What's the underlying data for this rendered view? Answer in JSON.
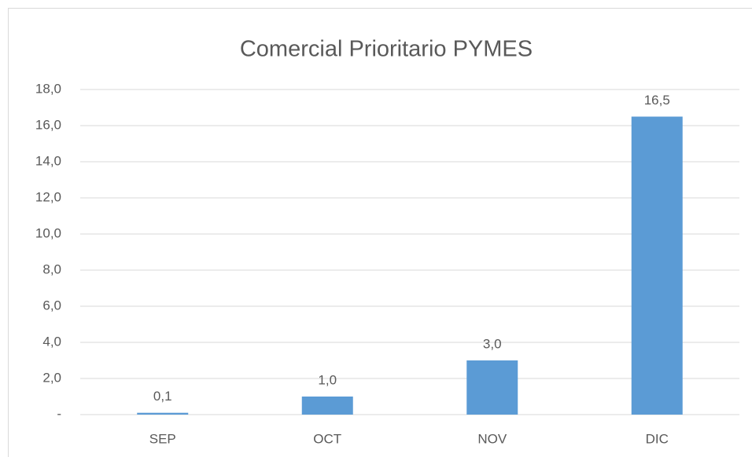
{
  "chart_data": {
    "type": "bar",
    "title": "Comercial Prioritario PYMES",
    "categories": [
      "SEP",
      "OCT",
      "NOV",
      "DIC"
    ],
    "values": [
      0.1,
      1.0,
      3.0,
      16.5
    ],
    "value_labels": [
      "0,1",
      "1,0",
      "3,0",
      "16,5"
    ],
    "color": "#5b9bd5",
    "ylim": [
      0,
      18
    ],
    "yticks": [
      {
        "value": 0,
        "label": "-"
      },
      {
        "value": 2,
        "label": "2,0"
      },
      {
        "value": 4,
        "label": "4,0"
      },
      {
        "value": 6,
        "label": "6,0"
      },
      {
        "value": 8,
        "label": "8,0"
      },
      {
        "value": 10,
        "label": "10,0"
      },
      {
        "value": 12,
        "label": "12,0"
      },
      {
        "value": 14,
        "label": "14,0"
      },
      {
        "value": 16,
        "label": "16,0"
      },
      {
        "value": 18,
        "label": "18,0"
      }
    ],
    "grid": true
  }
}
